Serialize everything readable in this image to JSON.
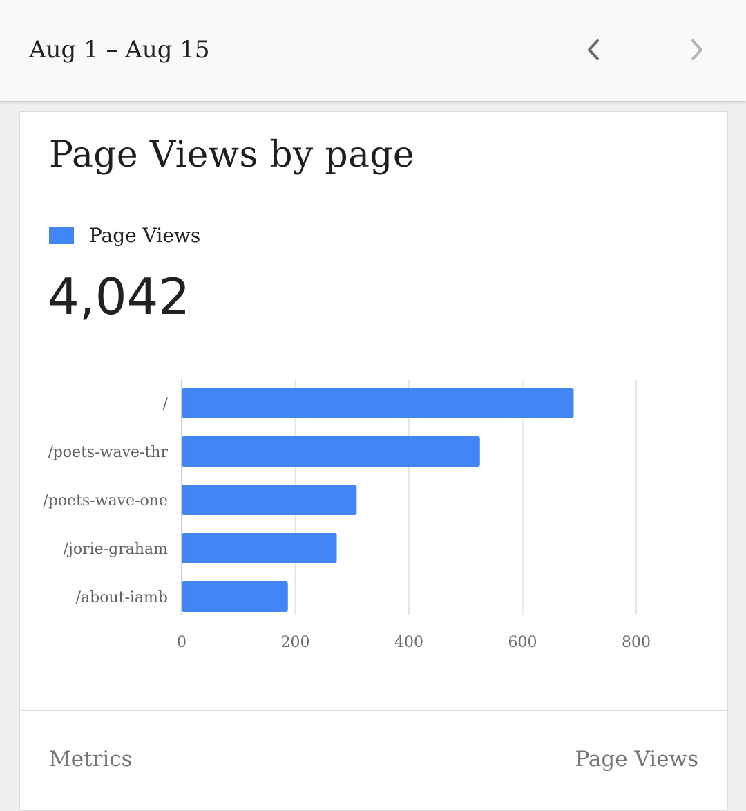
{
  "header": {
    "date_range": "Aug 1 – Aug 15",
    "prev_icon": "chevron-left-icon",
    "next_icon": "chevron-right-icon"
  },
  "card": {
    "title": "Page Views by page",
    "total": "4,042"
  },
  "footer": {
    "metrics_label": "Metrics",
    "metrics_value": "Page Views"
  },
  "colors": {
    "bar": "#4285f4",
    "grid": "#e6e6e6",
    "prev_icon": "#6b6b6b",
    "next_icon": "#b4b4b4"
  },
  "chart_data": {
    "type": "bar",
    "orientation": "horizontal",
    "categories": [
      "/",
      "/poets-wave-thr",
      "/poets-wave-one",
      "/jorie-graham",
      "/about-iamb"
    ],
    "series": [
      {
        "name": "Page Views",
        "values": [
          690,
          525,
          308,
          273,
          187
        ]
      }
    ],
    "xlim": [
      0,
      800
    ],
    "xticks": [
      0,
      200,
      400,
      600,
      800
    ],
    "title": "Page Views by page",
    "grid": true,
    "legend": "top-left"
  }
}
